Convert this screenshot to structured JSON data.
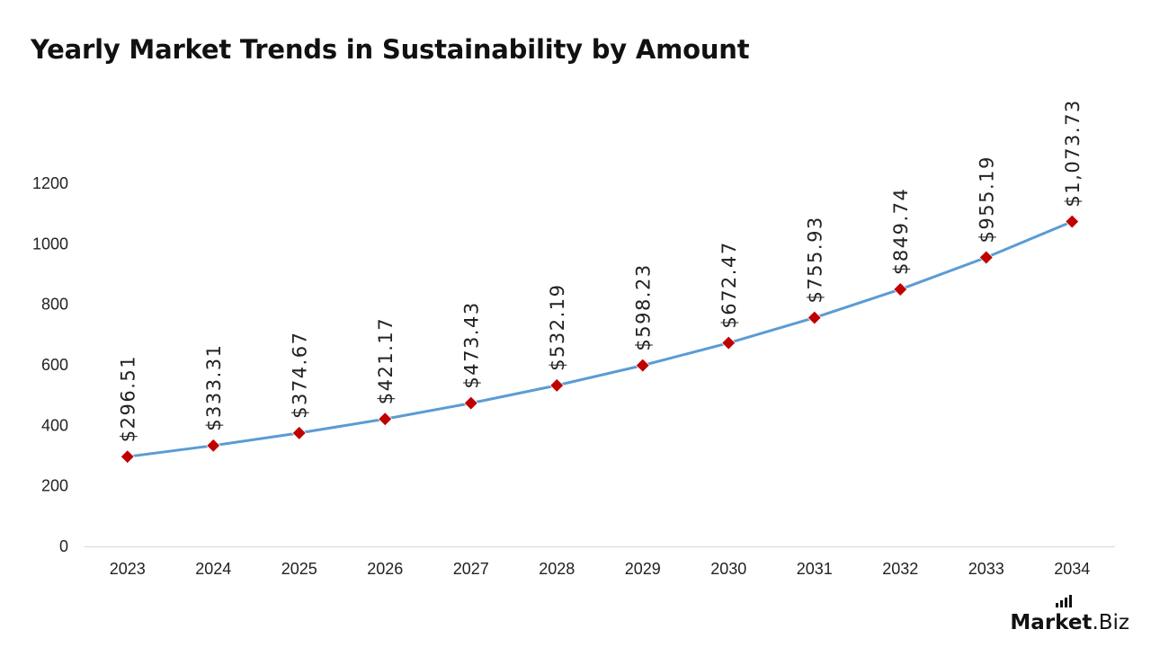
{
  "chart_data": {
    "type": "line",
    "title": "Yearly Market Trends in Sustainability by Amount",
    "xlabel": "",
    "ylabel": "",
    "categories": [
      "2023",
      "2024",
      "2025",
      "2026",
      "2027",
      "2028",
      "2029",
      "2030",
      "2031",
      "2032",
      "2033",
      "2034"
    ],
    "series": [
      {
        "values": [
          296.51,
          333.31,
          374.67,
          421.17,
          473.43,
          532.19,
          598.23,
          672.47,
          755.93,
          849.74,
          955.19,
          1073.73
        ],
        "labels": [
          "$296.51",
          "$333.31",
          "$374.67",
          "$421.17",
          "$473.43",
          "$532.19",
          "$598.23",
          "$672.47",
          "$755.93",
          "$849.74",
          "$955.19",
          "$1,073.73"
        ]
      }
    ],
    "y_ticks": [
      "0",
      "200",
      "400",
      "600",
      "800",
      "1000",
      "1200"
    ],
    "ylim": [
      0,
      1200
    ],
    "grid": false,
    "legend": "none",
    "line_color": "#5b9bd5",
    "marker_color": "#c00000",
    "marker_shape": "diamond"
  },
  "logo": {
    "text_main": "Market",
    "text_sub": ".Biz"
  }
}
